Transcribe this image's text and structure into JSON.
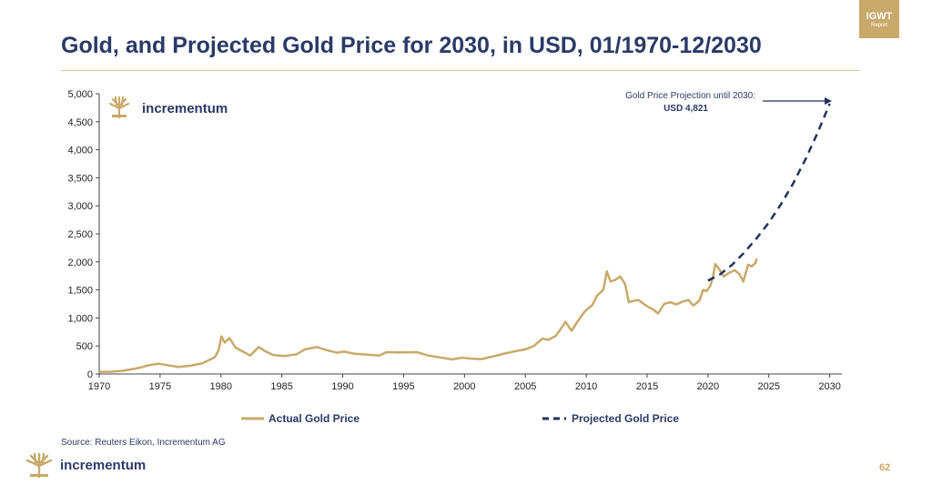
{
  "badge": {
    "label": "IGWT",
    "sublabel": "Report"
  },
  "page_title": "Gold, and Projected Gold Price for 2030, in USD, 01/1970-12/2030",
  "chart_logo_text": "incrementum",
  "source_text": "Source: Reuters Eikon, Incrementum AG",
  "footer": {
    "brand": "incrementum",
    "page_number": "62"
  },
  "colors": {
    "actual": "#c8a96a",
    "projected": "#22315e",
    "text": "#2b3a67"
  },
  "chart_data": {
    "type": "line",
    "title": "Gold, and Projected Gold Price for 2030, in USD, 01/1970-12/2030",
    "xlabel": "",
    "ylabel": "",
    "xlim": [
      1970,
      2031
    ],
    "ylim": [
      0,
      5000
    ],
    "x_ticks": [
      1970,
      1975,
      1980,
      1985,
      1990,
      1995,
      2000,
      2005,
      2010,
      2015,
      2020,
      2025,
      2030
    ],
    "y_ticks": [
      0,
      500,
      1000,
      1500,
      2000,
      2500,
      3000,
      3500,
      4000,
      4500,
      5000
    ],
    "y_tick_labels": [
      "0",
      "500",
      "1,000",
      "1,500",
      "2,000",
      "2,500",
      "3,000",
      "3,500",
      "4,000",
      "4,500",
      "5,000"
    ],
    "legend_position": "bottom",
    "series": [
      {
        "name": "Actual Gold Price",
        "style": "solid",
        "x": [
          1970,
          1971,
          1972,
          1973,
          1973.5,
          1974,
          1974.9,
          1975.5,
          1976.5,
          1977.5,
          1978.5,
          1979.5,
          1979.8,
          1980.05,
          1980.3,
          1980.7,
          1981.2,
          1981.8,
          1982.4,
          1983.1,
          1983.6,
          1984.3,
          1985.2,
          1986.2,
          1986.9,
          1987.9,
          1988.6,
          1989.5,
          1990.1,
          1991,
          1992,
          1993,
          1993.6,
          1994.5,
          1995.5,
          1996.1,
          1997,
          1998,
          1999,
          1999.8,
          2000.5,
          2001.4,
          2002.3,
          2003.3,
          2004.3,
          2005,
          2005.7,
          2006.4,
          2006.9,
          2007.5,
          2007.9,
          2008.3,
          2008.8,
          2009.3,
          2009.9,
          2010.5,
          2010.9,
          2011.4,
          2011.7,
          2012,
          2012.4,
          2012.8,
          2013.2,
          2013.5,
          2013.8,
          2014.3,
          2014.9,
          2015.5,
          2015.9,
          2016.4,
          2016.9,
          2017.4,
          2017.9,
          2018.4,
          2018.8,
          2019.3,
          2019.6,
          2019.9,
          2020.2,
          2020.4,
          2020.6,
          2020.9,
          2021.3,
          2021.7,
          2022.2,
          2022.6,
          2022.9,
          2023.3,
          2023.6,
          2023.9,
          2024
        ],
        "y": [
          35,
          41,
          58,
          97,
          120,
          154,
          183,
          160,
          125,
          148,
          193,
          300,
          420,
          670,
          560,
          640,
          470,
          400,
          330,
          480,
          410,
          340,
          320,
          350,
          440,
          480,
          430,
          380,
          400,
          360,
          345,
          330,
          390,
          385,
          385,
          390,
          330,
          295,
          260,
          290,
          275,
          265,
          310,
          365,
          410,
          440,
          500,
          630,
          610,
          680,
          800,
          930,
          770,
          940,
          1120,
          1230,
          1400,
          1500,
          1830,
          1650,
          1680,
          1740,
          1600,
          1280,
          1300,
          1320,
          1220,
          1150,
          1080,
          1250,
          1280,
          1240,
          1290,
          1320,
          1220,
          1310,
          1500,
          1480,
          1580,
          1720,
          1960,
          1880,
          1740,
          1800,
          1850,
          1780,
          1650,
          1950,
          1920,
          1980,
          2060
        ]
      },
      {
        "name": "Projected Gold Price",
        "style": "dashed",
        "x": [
          2020,
          2021,
          2022,
          2023,
          2024,
          2025,
          2026,
          2027,
          2028,
          2029,
          2030
        ],
        "y": [
          1665,
          1777,
          1952,
          2170,
          2423,
          2701,
          3027,
          3401,
          3826,
          4299,
          4821
        ]
      }
    ],
    "annotation": {
      "label": "Gold Price Projection until 2030:",
      "value_text": "USD 4,821",
      "x": 2030,
      "y": 4821
    }
  }
}
